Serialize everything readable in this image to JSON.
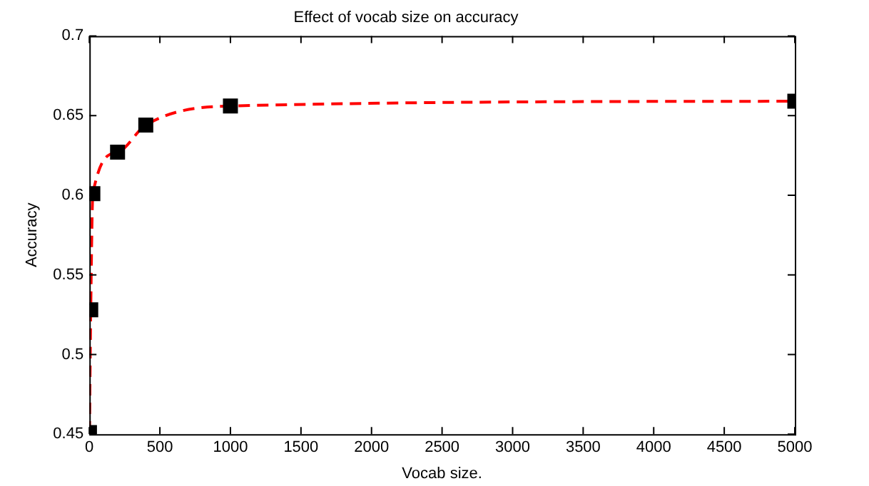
{
  "chart_data": {
    "type": "line",
    "title": "Effect of vocab size on accuracy",
    "xlabel": "Vocab size.",
    "ylabel": "Accuracy",
    "x": [
      1,
      10,
      25,
      200,
      400,
      1000,
      5000
    ],
    "series": [
      {
        "color": "#ff0000",
        "values": [
          0.451,
          0.528,
          0.601,
          0.627,
          0.644,
          0.656,
          0.659
        ]
      }
    ],
    "xlim": [
      0,
      5000
    ],
    "xticks": [
      0,
      500,
      1000,
      1500,
      2000,
      2500,
      3000,
      3500,
      4000,
      4500,
      5000
    ],
    "ylim": [
      0.45,
      0.7
    ],
    "yticks": [
      0.45,
      0.5,
      0.55,
      0.6,
      0.65,
      0.7
    ],
    "grid": false,
    "legend": false,
    "marker": "square",
    "line_style": "dashed"
  }
}
